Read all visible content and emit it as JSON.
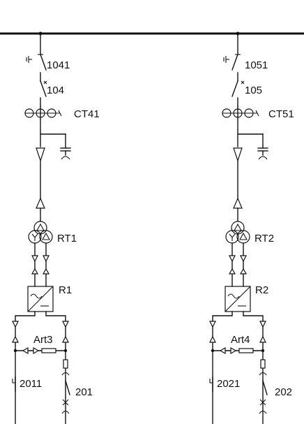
{
  "bays": [
    {
      "disconnector_label": "1041",
      "breaker_label": "104",
      "ct_label": "CT41",
      "transformer_label": "RT1",
      "converter_label": "R1",
      "arrester_label": "Art3",
      "dc_disconnector_label": "2011",
      "dc_breaker_label": "201"
    },
    {
      "disconnector_label": "1051",
      "breaker_label": "105",
      "ct_label": "CT51",
      "transformer_label": "RT2",
      "converter_label": "R2",
      "arrester_label": "Art4",
      "dc_disconnector_label": "2021",
      "dc_breaker_label": "202"
    }
  ]
}
